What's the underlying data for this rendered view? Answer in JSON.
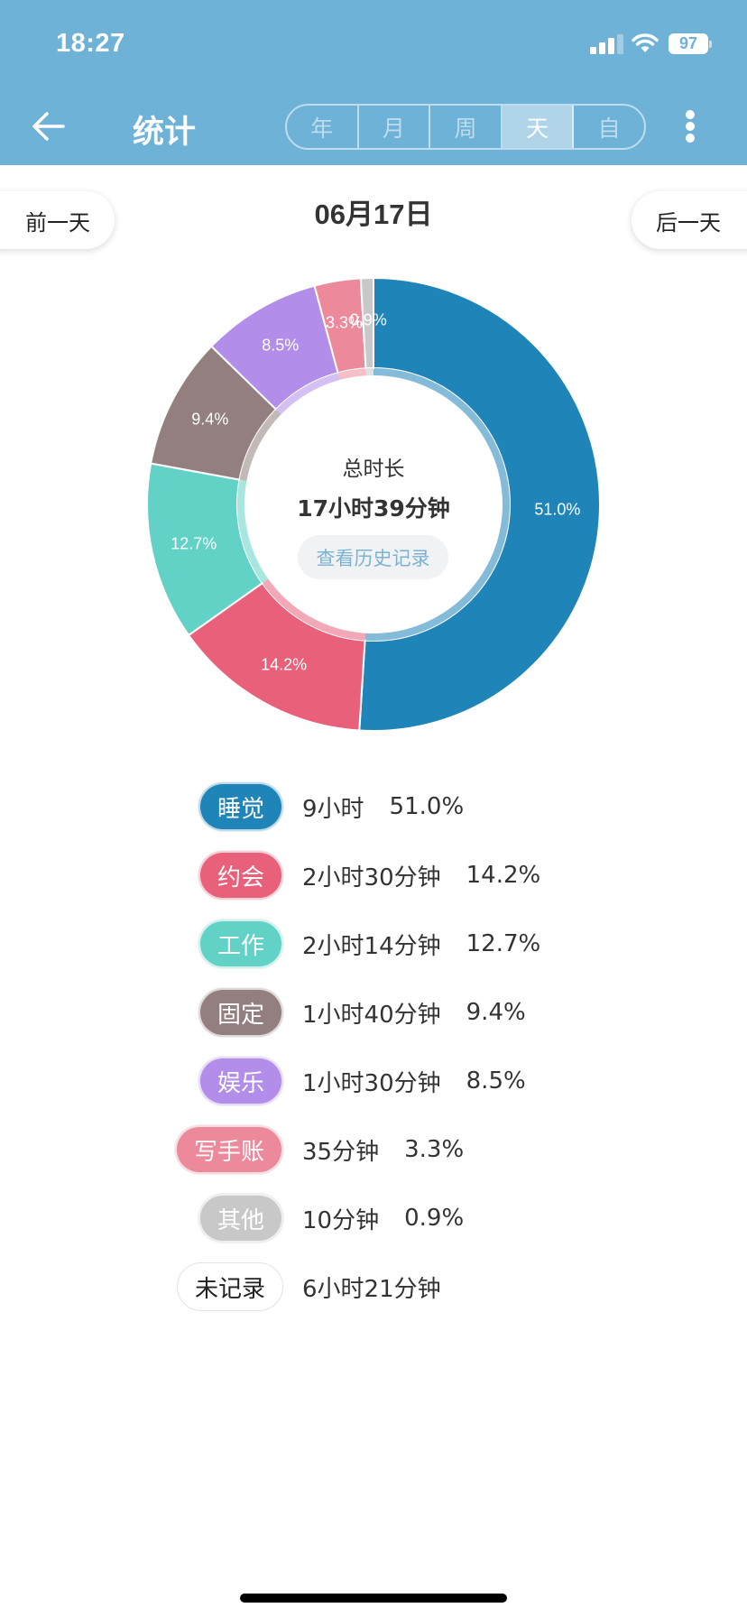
{
  "status_bar": {
    "time": "18:27",
    "battery": "97",
    "icons": [
      "signal-icon",
      "wifi-icon",
      "battery-icon"
    ]
  },
  "header": {
    "back_icon": "arrow-left-icon",
    "title": "统计",
    "tabs": [
      {
        "label": "年",
        "active": false
      },
      {
        "label": "月",
        "active": false
      },
      {
        "label": "周",
        "active": false
      },
      {
        "label": "天",
        "active": true
      },
      {
        "label": "自",
        "active": false
      }
    ],
    "more_icon": "more-vertical-icon",
    "background_color": "#6fb2d7"
  },
  "date_nav": {
    "prev_label": "前一天",
    "date": "06月17日",
    "next_label": "后一天"
  },
  "center": {
    "title": "总时长",
    "total": "17小时39分钟",
    "history_button": "查看历史记录"
  },
  "legend": [
    {
      "name": "睡觉",
      "duration": "9小时",
      "percent": "51.0%",
      "color": "#1f84b8"
    },
    {
      "name": "约会",
      "duration": "2小时30分钟",
      "percent": "14.2%",
      "color": "#e8607a"
    },
    {
      "name": "工作",
      "duration": "2小时14分钟",
      "percent": "12.7%",
      "color": "#63d2c6"
    },
    {
      "name": "固定",
      "duration": "1小时40分钟",
      "percent": "9.4%",
      "color": "#937f80"
    },
    {
      "name": "娱乐",
      "duration": "1小时30分钟",
      "percent": "8.5%",
      "color": "#b28de9"
    },
    {
      "name": "写手账",
      "duration": "35分钟",
      "percent": "3.3%",
      "color": "#ec8a9c"
    },
    {
      "name": "其他",
      "duration": "10分钟",
      "percent": "0.9%",
      "color": "#c8c8c8"
    },
    {
      "name": "未记录",
      "duration": "6小时21分钟",
      "percent": "",
      "color": "#ffffff"
    }
  ],
  "chart_data": {
    "type": "pie",
    "subtype": "donut",
    "title": "总时长 17小时39分钟",
    "categories": [
      "睡觉",
      "约会",
      "工作",
      "固定",
      "娱乐",
      "写手账",
      "其他"
    ],
    "values": [
      51.0,
      14.2,
      12.7,
      9.4,
      8.5,
      3.3,
      0.9
    ],
    "labels": [
      "51.0%",
      "14.2%",
      "12.7%",
      "9.4%",
      "8.5%",
      "3.3%",
      "0.9%"
    ],
    "durations": [
      "9小时",
      "2小时30分钟",
      "2小时14分钟",
      "1小时40分钟",
      "1小时30分钟",
      "35分钟",
      "10分钟"
    ],
    "colors": [
      "#1f84b8",
      "#e8607a",
      "#63d2c6",
      "#937f80",
      "#b28de9",
      "#ec8a9c",
      "#c8c8c8"
    ],
    "start_angle": "12 o'clock",
    "direction": "clockwise",
    "legend_position": "bottom"
  }
}
